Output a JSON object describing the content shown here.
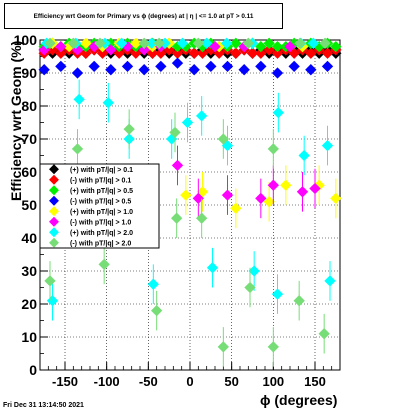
{
  "chart_data": {
    "type": "scatter",
    "title": "Efficiency wrt Geom for Primary vs ϕ (degrees) at | η | <= 1.0 at pT > 0.11",
    "xlabel": "ϕ (degrees)",
    "ylabel": "Efficiency wrt Geom (%)",
    "xlim": [
      -180,
      180
    ],
    "ylim": [
      0,
      100
    ],
    "grid": true,
    "legend_position": "left-middle",
    "xticks": [
      -150,
      -100,
      -50,
      0,
      50,
      100,
      150
    ],
    "yticks": [
      0,
      10,
      20,
      30,
      40,
      50,
      60,
      70,
      80,
      90,
      100
    ],
    "series": [
      {
        "name": "(+) with pT/|q| > 0.1",
        "color": "#000000",
        "x": [
          -175,
          -165,
          -155,
          -145,
          -135,
          -125,
          -115,
          -105,
          -95,
          -85,
          -75,
          -65,
          -55,
          -45,
          -35,
          -25,
          -15,
          -5,
          5,
          15,
          25,
          35,
          45,
          55,
          65,
          75,
          85,
          95,
          105,
          115,
          125,
          135,
          145,
          155,
          165,
          175
        ],
        "y": [
          97,
          96,
          97,
          96,
          97,
          96,
          97,
          97,
          96,
          97,
          96,
          97,
          96,
          96,
          97,
          96,
          97,
          96,
          96,
          97,
          96,
          97,
          96,
          96,
          97,
          96,
          97,
          96,
          97,
          96,
          97,
          96,
          97,
          96,
          97,
          96
        ]
      },
      {
        "name": "(-) with pT/|q| > 0.1",
        "color": "#ff0000",
        "x": [
          -175,
          -165,
          -155,
          -145,
          -135,
          -125,
          -115,
          -105,
          -95,
          -85,
          -75,
          -65,
          -55,
          -45,
          -35,
          -25,
          -15,
          -5,
          5,
          15,
          25,
          35,
          45,
          55,
          65,
          75,
          85,
          95,
          105,
          115,
          125,
          135,
          145,
          155,
          165,
          175
        ],
        "y": [
          96,
          97,
          96,
          97,
          96,
          96,
          97,
          96,
          97,
          96,
          97,
          96,
          97,
          96,
          96,
          97,
          96,
          97,
          96,
          96,
          97,
          96,
          97,
          96,
          97,
          96,
          96,
          97,
          96,
          97,
          96,
          97,
          96,
          97,
          96,
          97
        ]
      },
      {
        "name": "(+) with pT/|q| > 0.5",
        "color": "#00ee00",
        "x": [
          -175,
          -165,
          -155,
          -145,
          -135,
          -125,
          -115,
          -105,
          -95,
          -85,
          -75,
          -65,
          -55,
          -45,
          -35,
          -25,
          -15,
          -5,
          5,
          15,
          25,
          35,
          45,
          55,
          65,
          75,
          85,
          95,
          105,
          115,
          125,
          135,
          145,
          155,
          165,
          175
        ],
        "y": [
          98,
          99,
          98,
          99,
          98,
          98,
          99,
          98,
          99,
          98,
          99,
          98,
          98,
          99,
          98,
          99,
          98,
          98,
          99,
          98,
          99,
          98,
          98,
          99,
          98,
          99,
          98,
          99,
          98,
          98,
          99,
          98,
          99,
          98,
          99,
          98
        ]
      },
      {
        "name": "(-) with pT/|q| > 0.5",
        "color": "#0000ff",
        "x": [
          -175,
          -155,
          -135,
          -115,
          -95,
          -75,
          -55,
          -35,
          -15,
          5,
          25,
          45,
          65,
          85,
          105,
          125,
          145,
          165
        ],
        "y": [
          91,
          92,
          90,
          92,
          91,
          92,
          91,
          92,
          93,
          91,
          92,
          92,
          91,
          92,
          90,
          92,
          91,
          92
        ]
      },
      {
        "name": "(+) with pT/|q| > 1.0",
        "color": "#ffff00",
        "x": [
          -165,
          -145,
          -125,
          -105,
          -85,
          -65,
          -45,
          -25,
          -5,
          15,
          35,
          55,
          75,
          95,
          115,
          135,
          155,
          175
        ],
        "y": [
          99,
          98,
          99,
          98,
          99,
          99,
          98,
          99,
          53,
          54,
          98,
          49,
          99,
          51,
          56,
          98,
          56,
          52
        ]
      },
      {
        "name": "(-) with pT/|q| > 1.0",
        "color": "#ff00ff",
        "x": [
          -175,
          -155,
          -135,
          -115,
          -95,
          -75,
          -55,
          -35,
          -15,
          10,
          30,
          45,
          65,
          85,
          100,
          120,
          135,
          150
        ],
        "y": [
          97,
          98,
          97,
          98,
          97,
          98,
          97,
          98,
          62,
          52,
          98,
          53,
          98,
          52,
          56,
          98,
          54,
          55
        ]
      },
      {
        "name": "(+) with pT/|q| > 2.0",
        "color": "#00ffff",
        "x": [
          -172,
          -165,
          -137,
          -133,
          -102,
          -98,
          -82,
          -73,
          -46,
          -44,
          -30,
          -22,
          -9,
          -3,
          20,
          14,
          27,
          44,
          45,
          77,
          75,
          106,
          105,
          133,
          137,
          148,
          165,
          168
        ],
        "y": [
          99,
          21,
          99,
          82,
          99,
          81,
          99,
          70,
          99,
          26,
          99,
          70,
          99,
          75,
          99,
          77,
          31,
          99,
          68,
          30,
          99,
          78,
          23,
          99,
          65,
          99,
          68,
          27
        ]
      },
      {
        "name": "(-) with pT/|q| > 2.0",
        "color": "#77dd77",
        "x": [
          -168,
          -168,
          -140,
          -135,
          -108,
          -103,
          -73,
          -55,
          -40,
          -37,
          -18,
          -16,
          10,
          14,
          40,
          40,
          70,
          72,
          100,
          100,
          132,
          131,
          162,
          161
        ],
        "y": [
          99,
          27,
          99,
          67,
          99,
          32,
          73,
          99,
          18,
          99,
          72,
          46,
          99,
          46,
          70,
          7,
          99,
          25,
          67,
          7,
          99,
          21,
          99,
          11
        ]
      }
    ]
  },
  "stamp": "Fri Dec 31 13:14:50 2021"
}
